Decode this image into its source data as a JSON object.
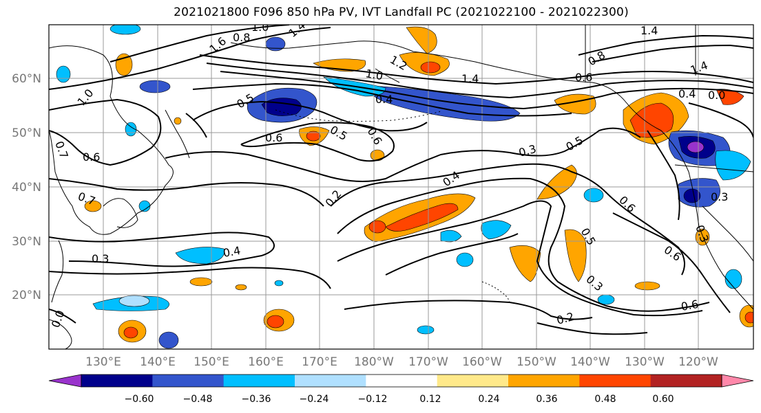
{
  "title": "2021021800 F096 850 hPa PV, IVT Landfall PC (2021022100 - 2021022300)",
  "lat_labels": [
    "60°N",
    "50°N",
    "40°N",
    "30°N",
    "20°N"
  ],
  "lon_labels": [
    "130°E",
    "140°E",
    "150°E",
    "160°E",
    "170°E",
    "180°W",
    "170°W",
    "160°W",
    "150°W",
    "140°W",
    "130°W",
    "120°W"
  ],
  "colorbar": {
    "ticks": [
      "−0.60",
      "−0.48",
      "−0.36",
      "−0.24",
      "−0.12",
      "0.12",
      "0.24",
      "0.36",
      "0.48",
      "0.60"
    ],
    "colors": [
      "#9933cc",
      "#00008b",
      "#3355cc",
      "#00bfff",
      "#b0e0ff",
      "#ffffff",
      "#ffe98a",
      "#ffa500",
      "#ff4500",
      "#b22222",
      "#ff88aa"
    ]
  },
  "contour_labels": [
    "0.8",
    "1.4",
    "1.6",
    "1.0",
    "1.2",
    "1.4",
    "1.4",
    "0.8",
    "0.6",
    "1.4",
    "1.0",
    "0.5",
    "0.4",
    "0.6",
    "0.5",
    "0.6",
    "1.0",
    "0.7",
    "0.6",
    "0.7",
    "0.4",
    "0.0",
    "0.3",
    "0.5",
    "0.4",
    "0.2",
    "0.6",
    "0.3",
    "0.5",
    "0.6",
    "0.3",
    "0.2",
    "0.6",
    "0.3",
    "0.4",
    "0.3",
    "0.0"
  ]
}
